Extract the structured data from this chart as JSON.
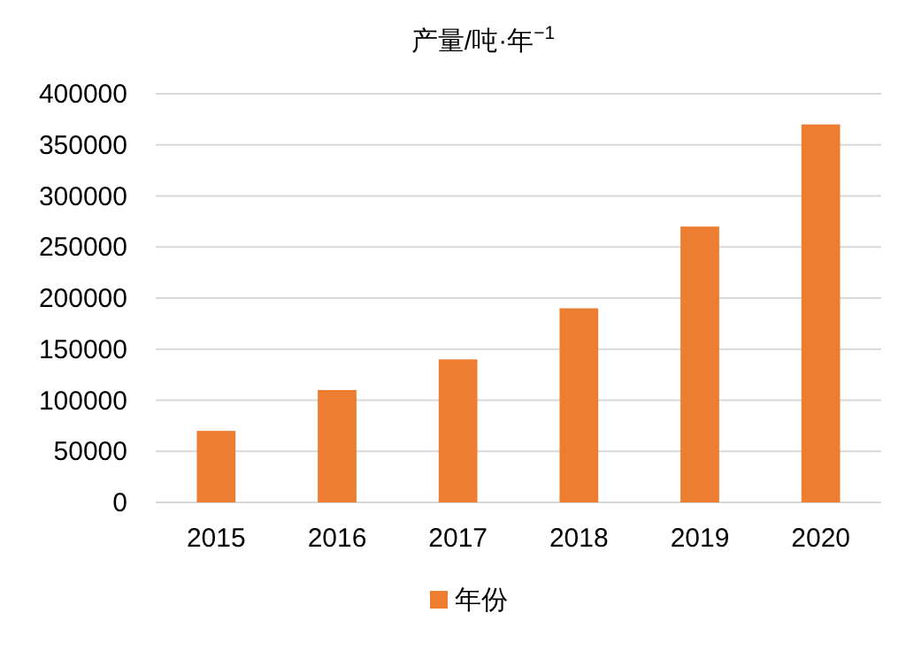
{
  "chart_data": {
    "type": "bar",
    "title": "产量/吨·年$^{−1}$",
    "categories": [
      "2015",
      "2016",
      "2017",
      "2018",
      "2019",
      "2020"
    ],
    "series": [
      {
        "name": "年份",
        "color": "#ed7d31",
        "values": [
          70000,
          110000,
          140000,
          190000,
          270000,
          370000
        ]
      }
    ],
    "ylim": [
      0,
      400000
    ],
    "yticks": [
      0,
      50000,
      100000,
      150000,
      200000,
      250000,
      300000,
      350000,
      400000
    ],
    "grid": "y",
    "legend": "bottom"
  }
}
